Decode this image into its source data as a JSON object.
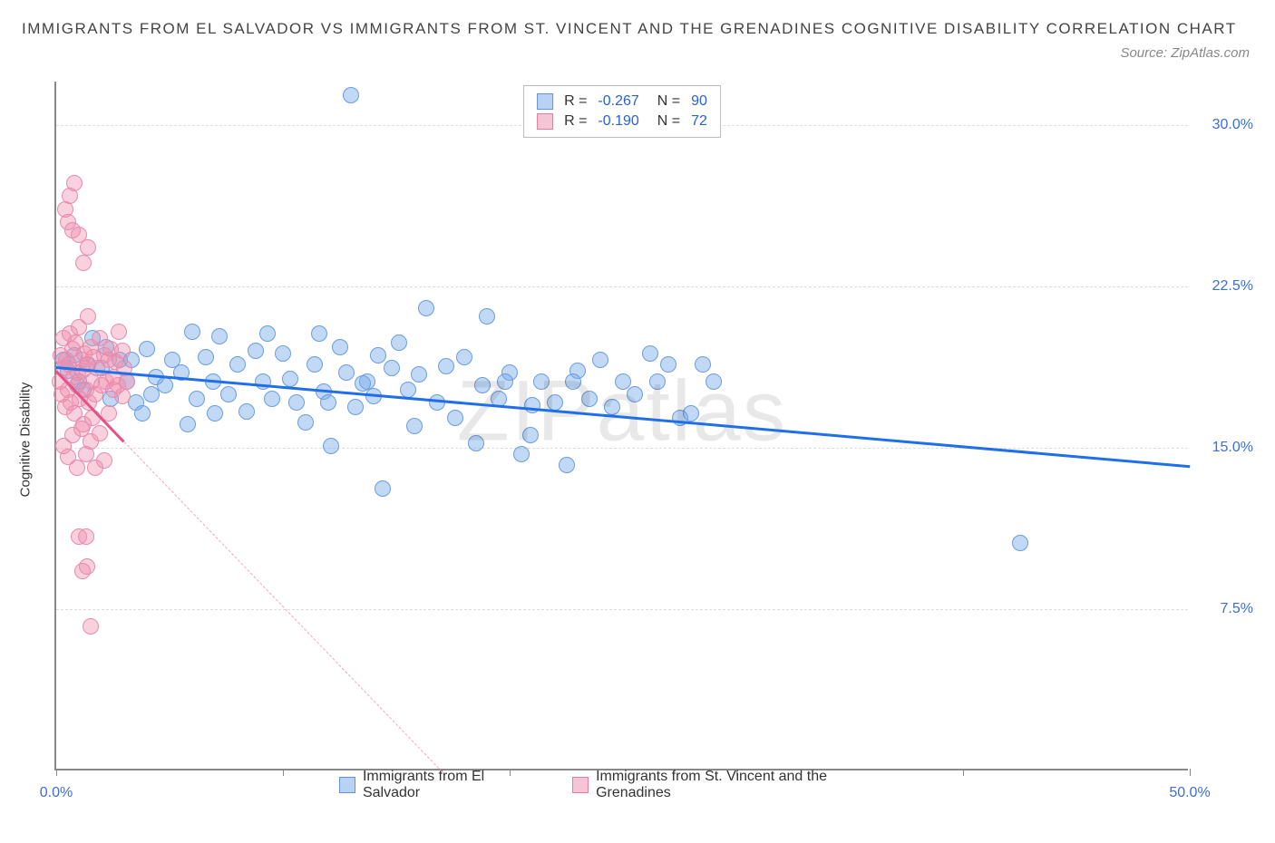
{
  "title": "IMMIGRANTS FROM EL SALVADOR VS IMMIGRANTS FROM ST. VINCENT AND THE GRENADINES COGNITIVE DISABILITY CORRELATION CHART",
  "source": "Source: ZipAtlas.com",
  "watermark": "ZIPatlas",
  "ylabel": "Cognitive Disability",
  "chart": {
    "type": "scatter",
    "background_color": "#ffffff",
    "grid_color": "#dddddd",
    "axis_color": "#888888",
    "xlim": [
      0,
      50
    ],
    "ylim": [
      0,
      32
    ],
    "xticks": [
      0,
      10,
      20,
      30,
      40,
      50
    ],
    "xtick_labels": [
      "0.0%",
      "",
      "",
      "",
      "",
      "50.0%"
    ],
    "yticks": [
      7.5,
      15.0,
      22.5,
      30.0
    ],
    "ytick_labels": [
      "7.5%",
      "15.0%",
      "22.5%",
      "30.0%"
    ],
    "series": [
      {
        "name": "Immigrants from El Salvador",
        "color_fill": "rgba(120,170,235,0.45)",
        "color_stroke": "#6a9de0",
        "swatch_fill": "#b9d2f3",
        "swatch_stroke": "#5f94dd",
        "marker_radius": 9,
        "R": "-0.267",
        "N": "90",
        "trend": {
          "x1": 0,
          "y1": 18.8,
          "x2": 50,
          "y2": 14.2,
          "color": "#1f6feb",
          "width": 2.8
        },
        "trend_dash": null,
        "points": [
          [
            0.5,
            18.5
          ],
          [
            0.8,
            19.2
          ],
          [
            1.2,
            17.6
          ],
          [
            1.6,
            20.0
          ],
          [
            2.0,
            18.6
          ],
          [
            2.4,
            17.2
          ],
          [
            2.8,
            19.0
          ],
          [
            3.1,
            18.0
          ],
          [
            3.5,
            17.0
          ],
          [
            4.0,
            19.5
          ],
          [
            4.4,
            18.2
          ],
          [
            4.8,
            17.8
          ],
          [
            5.1,
            19.0
          ],
          [
            5.5,
            18.4
          ],
          [
            6.2,
            17.2
          ],
          [
            6.6,
            19.1
          ],
          [
            6.9,
            18.0
          ],
          [
            7.2,
            20.1
          ],
          [
            7.6,
            17.4
          ],
          [
            8.0,
            18.8
          ],
          [
            8.4,
            16.6
          ],
          [
            8.8,
            19.4
          ],
          [
            9.1,
            18.0
          ],
          [
            9.5,
            17.2
          ],
          [
            10.0,
            19.3
          ],
          [
            10.3,
            18.1
          ],
          [
            10.6,
            17.0
          ],
          [
            11.0,
            16.1
          ],
          [
            11.4,
            18.8
          ],
          [
            11.8,
            17.5
          ],
          [
            12.1,
            15.0
          ],
          [
            12.5,
            19.6
          ],
          [
            12.8,
            18.4
          ],
          [
            13.0,
            31.3
          ],
          [
            13.2,
            16.8
          ],
          [
            13.7,
            18.0
          ],
          [
            14.0,
            17.3
          ],
          [
            14.4,
            13.0
          ],
          [
            14.8,
            18.6
          ],
          [
            15.1,
            19.8
          ],
          [
            15.5,
            17.6
          ],
          [
            16.0,
            18.3
          ],
          [
            16.3,
            21.4
          ],
          [
            16.8,
            17.0
          ],
          [
            17.2,
            18.7
          ],
          [
            17.6,
            16.3
          ],
          [
            18.0,
            19.1
          ],
          [
            18.5,
            15.1
          ],
          [
            19.0,
            21.0
          ],
          [
            19.5,
            17.2
          ],
          [
            20.0,
            18.4
          ],
          [
            20.5,
            14.6
          ],
          [
            21.0,
            16.9
          ],
          [
            21.4,
            18.0
          ],
          [
            22.0,
            17.0
          ],
          [
            22.5,
            14.1
          ],
          [
            23.0,
            18.5
          ],
          [
            23.5,
            17.2
          ],
          [
            24.0,
            19.0
          ],
          [
            24.5,
            16.8
          ],
          [
            25.0,
            18.0
          ],
          [
            25.5,
            17.4
          ],
          [
            26.2,
            19.3
          ],
          [
            27.0,
            18.8
          ],
          [
            28.0,
            16.5
          ],
          [
            29.0,
            18.0
          ],
          [
            42.5,
            10.5
          ],
          [
            5.8,
            16.0
          ],
          [
            6.0,
            20.3
          ],
          [
            9.3,
            20.2
          ],
          [
            11.6,
            20.2
          ],
          [
            3.8,
            16.5
          ],
          [
            7.0,
            16.5
          ],
          [
            12.0,
            17.0
          ],
          [
            14.2,
            19.2
          ],
          [
            1.0,
            18.0
          ],
          [
            1.4,
            18.8
          ],
          [
            3.3,
            19.0
          ],
          [
            0.3,
            19.0
          ],
          [
            2.2,
            19.6
          ],
          [
            4.2,
            17.4
          ],
          [
            13.5,
            17.9
          ],
          [
            18.8,
            17.8
          ],
          [
            20.9,
            15.5
          ],
          [
            22.8,
            18.0
          ],
          [
            26.5,
            18.0
          ],
          [
            27.5,
            16.3
          ],
          [
            28.5,
            18.8
          ],
          [
            15.8,
            15.9
          ],
          [
            19.8,
            18.0
          ]
        ]
      },
      {
        "name": "Immigrants from St. Vincent and the Grenadines",
        "color_fill": "rgba(240,140,170,0.40)",
        "color_stroke": "#e88aad",
        "swatch_fill": "#f5c5d6",
        "swatch_stroke": "#e77ba2",
        "marker_radius": 9,
        "R": "-0.190",
        "N": "72",
        "trend": {
          "x1": 0,
          "y1": 18.6,
          "x2": 3.0,
          "y2": 15.3,
          "color": "#e55287",
          "width": 2.5
        },
        "trend_dash": {
          "x1": 3.0,
          "y1": 15.3,
          "x2": 17.0,
          "y2": 0,
          "color": "#f0a7c0",
          "width": 1.5
        },
        "points": [
          [
            0.15,
            18.0
          ],
          [
            0.2,
            19.2
          ],
          [
            0.25,
            17.4
          ],
          [
            0.3,
            20.0
          ],
          [
            0.35,
            18.6
          ],
          [
            0.4,
            16.8
          ],
          [
            0.45,
            19.0
          ],
          [
            0.5,
            17.6
          ],
          [
            0.55,
            18.8
          ],
          [
            0.6,
            20.2
          ],
          [
            0.65,
            17.0
          ],
          [
            0.7,
            19.5
          ],
          [
            0.75,
            18.2
          ],
          [
            0.8,
            16.5
          ],
          [
            0.85,
            19.8
          ],
          [
            0.9,
            17.8
          ],
          [
            0.95,
            18.4
          ],
          [
            1.0,
            20.5
          ],
          [
            1.05,
            17.2
          ],
          [
            1.1,
            19.0
          ],
          [
            1.15,
            18.5
          ],
          [
            1.2,
            16.0
          ],
          [
            1.25,
            19.3
          ],
          [
            1.3,
            17.6
          ],
          [
            1.35,
            18.8
          ],
          [
            1.4,
            21.0
          ],
          [
            1.45,
            17.0
          ],
          [
            1.5,
            19.6
          ],
          [
            1.55,
            18.0
          ],
          [
            1.6,
            16.3
          ],
          [
            1.65,
            19.1
          ],
          [
            1.7,
            17.4
          ],
          [
            1.8,
            18.6
          ],
          [
            1.9,
            20.0
          ],
          [
            2.0,
            17.8
          ],
          [
            2.1,
            19.2
          ],
          [
            2.2,
            18.0
          ],
          [
            2.3,
            16.5
          ],
          [
            2.4,
            19.5
          ],
          [
            2.5,
            17.6
          ],
          [
            2.6,
            18.9
          ],
          [
            2.75,
            20.3
          ],
          [
            2.9,
            17.3
          ],
          [
            3.0,
            18.6
          ],
          [
            0.3,
            15.0
          ],
          [
            0.5,
            14.5
          ],
          [
            0.7,
            15.5
          ],
          [
            0.9,
            14.0
          ],
          [
            1.1,
            15.8
          ],
          [
            1.3,
            14.6
          ],
          [
            1.5,
            15.2
          ],
          [
            1.7,
            14.0
          ],
          [
            1.9,
            15.6
          ],
          [
            2.1,
            14.3
          ],
          [
            0.4,
            26.0
          ],
          [
            0.5,
            25.4
          ],
          [
            0.6,
            26.6
          ],
          [
            0.7,
            25.0
          ],
          [
            1.0,
            24.8
          ],
          [
            0.8,
            27.2
          ],
          [
            1.2,
            23.5
          ],
          [
            1.4,
            24.2
          ],
          [
            1.0,
            10.8
          ],
          [
            1.3,
            10.8
          ],
          [
            1.15,
            9.2
          ],
          [
            1.35,
            9.4
          ],
          [
            1.5,
            6.6
          ],
          [
            2.3,
            19.0
          ],
          [
            2.5,
            18.2
          ],
          [
            2.7,
            17.8
          ],
          [
            2.9,
            19.4
          ],
          [
            3.1,
            18.0
          ]
        ]
      }
    ]
  },
  "legend_bottom": [
    "Immigrants from El Salvador",
    "Immigrants from St. Vincent and the Grenadines"
  ]
}
